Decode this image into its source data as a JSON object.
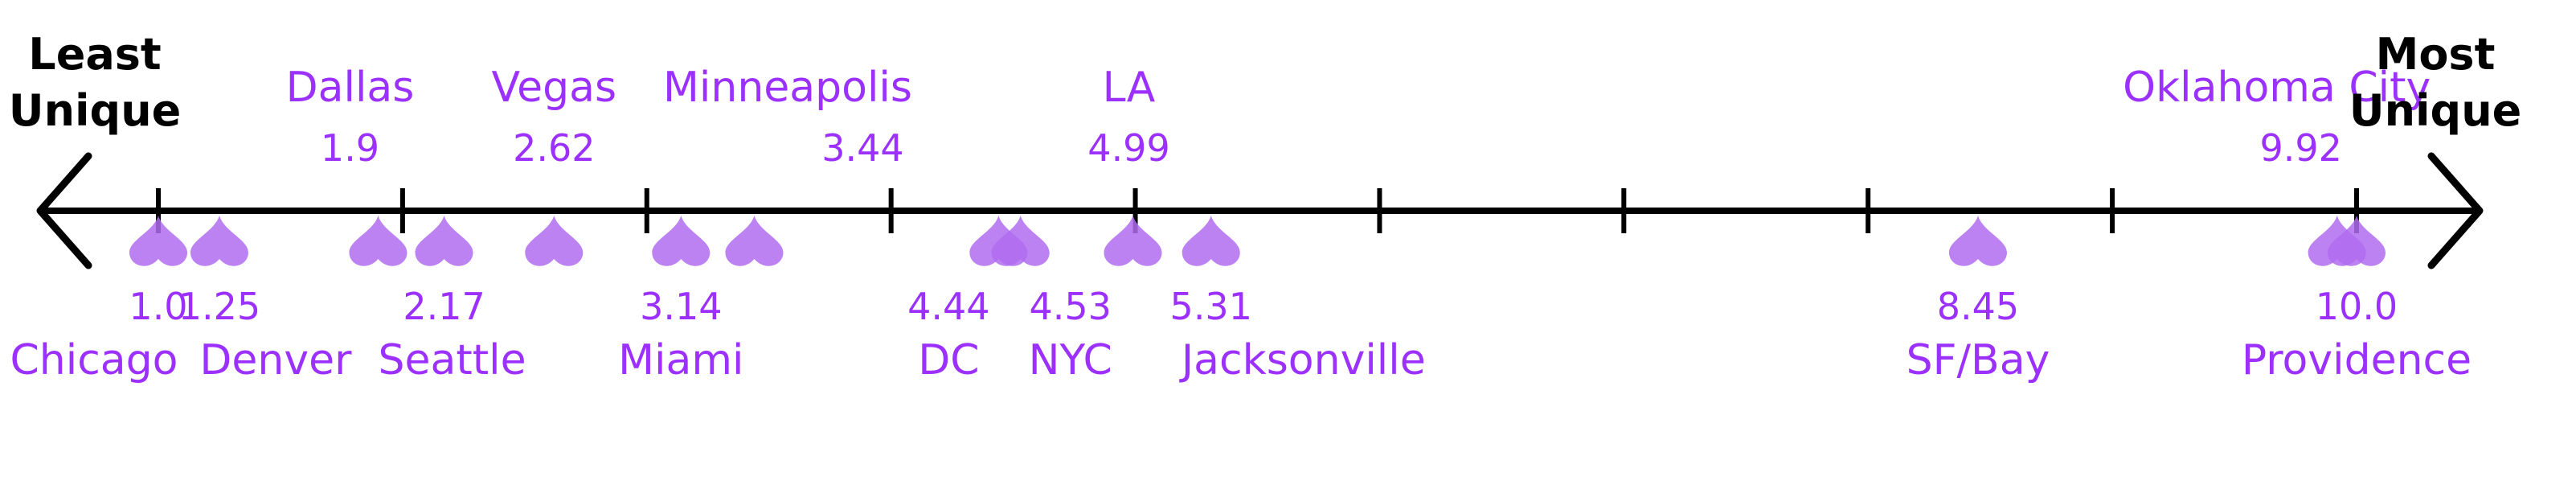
{
  "scale": {
    "min": 1,
    "max": 10,
    "left_end": [
      "Least",
      "Unique"
    ],
    "right_end": [
      "Most",
      "Unique"
    ]
  },
  "colors": {
    "axis": "#000000",
    "label": "#9b30ff",
    "marker": "#b06cf0",
    "marker_overlap": "#8a2be2"
  },
  "chart_data": {
    "type": "scatter",
    "xlim": [
      1,
      10
    ],
    "ticks": [
      1,
      2,
      3,
      4,
      5,
      6,
      7,
      8,
      9,
      10
    ],
    "points": [
      {
        "name": "Chicago",
        "value": 1.0,
        "value_text": "1.0",
        "side": "below"
      },
      {
        "name": "Denver",
        "value": 1.25,
        "value_text": "1.25",
        "side": "below"
      },
      {
        "name": "Dallas",
        "value": 1.9,
        "value_text": "1.9",
        "side": "above"
      },
      {
        "name": "Seattle",
        "value": 2.17,
        "value_text": "2.17",
        "side": "below"
      },
      {
        "name": "Vegas",
        "value": 2.62,
        "value_text": "2.62",
        "side": "above"
      },
      {
        "name": "Miami",
        "value": 3.14,
        "value_text": "3.14",
        "side": "below"
      },
      {
        "name": "Minneapolis",
        "value": 3.44,
        "value_text": "3.44",
        "side": "above"
      },
      {
        "name": "DC",
        "value": 4.44,
        "value_text": "4.44",
        "side": "below"
      },
      {
        "name": "NYC",
        "value": 4.53,
        "value_text": "4.53",
        "side": "below"
      },
      {
        "name": "LA",
        "value": 4.99,
        "value_text": "4.99",
        "side": "above"
      },
      {
        "name": "Jacksonville",
        "value": 5.31,
        "value_text": "5.31",
        "side": "below"
      },
      {
        "name": "SF/Bay",
        "value": 8.45,
        "value_text": "8.45",
        "side": "below"
      },
      {
        "name": "Oklahoma City",
        "value": 9.92,
        "value_text": "9.92",
        "side": "above"
      },
      {
        "name": "Providence",
        "value": 10.0,
        "value_text": "10.0",
        "side": "below"
      }
    ]
  }
}
